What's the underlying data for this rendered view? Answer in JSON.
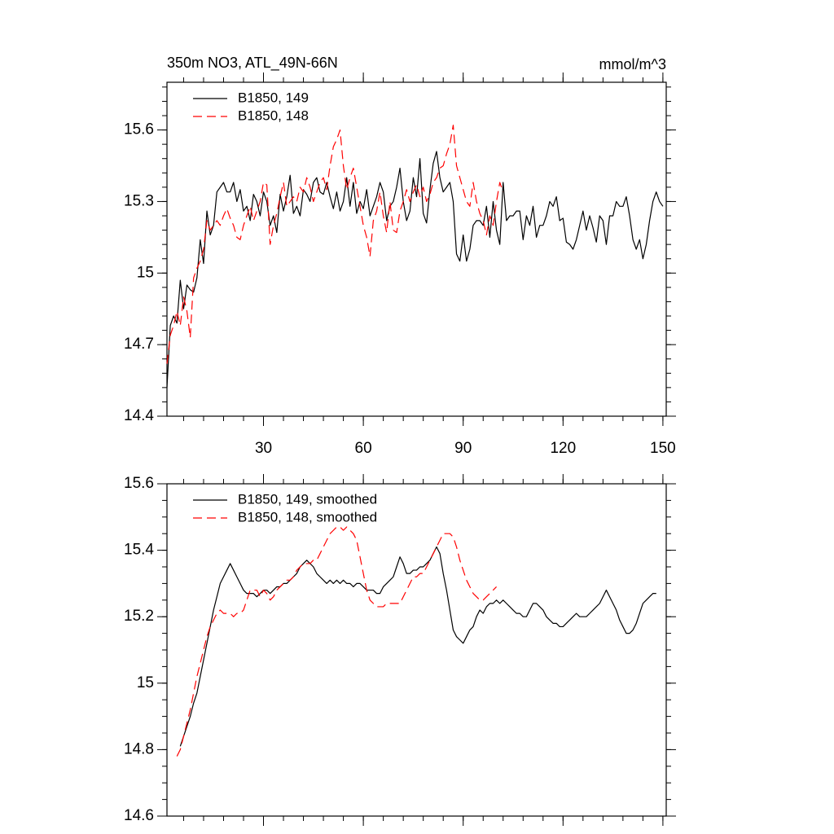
{
  "chart_data": [
    {
      "type": "line",
      "title": "350m NO3, ATL_49N-66N",
      "units": "mmol/m^3",
      "xlim": [
        1,
        151
      ],
      "xticks": [
        30,
        60,
        90,
        120,
        150
      ],
      "show_xtick_labels": true,
      "ylim": [
        14.4,
        15.8
      ],
      "yticks": [
        14.4,
        14.7,
        15.0,
        15.3,
        15.6
      ],
      "legend": "upper left",
      "x": [
        1,
        2,
        3,
        4,
        5,
        6,
        7,
        8,
        9,
        10,
        11,
        12,
        13,
        14,
        15,
        16,
        17,
        18,
        19,
        20,
        21,
        22,
        23,
        24,
        25,
        26,
        27,
        28,
        29,
        30,
        31,
        32,
        33,
        34,
        35,
        36,
        37,
        38,
        39,
        40,
        41,
        42,
        43,
        44,
        45,
        46,
        47,
        48,
        49,
        50,
        51,
        52,
        53,
        54,
        55,
        56,
        57,
        58,
        59,
        60,
        61,
        62,
        63,
        64,
        65,
        66,
        67,
        68,
        69,
        70,
        71,
        72,
        73,
        74,
        75,
        76,
        77,
        78,
        79,
        80,
        81,
        82,
        83,
        84,
        85,
        86,
        87,
        88,
        89,
        90,
        91,
        92,
        93,
        94,
        95,
        96,
        97,
        98,
        99,
        100,
        101,
        102,
        103,
        104,
        105,
        106,
        107,
        108,
        109,
        110,
        111,
        112,
        113,
        114,
        115,
        116,
        117,
        118,
        119,
        120,
        121,
        122,
        123,
        124,
        125,
        126,
        127,
        128,
        129,
        130,
        131,
        132,
        133,
        134,
        135,
        136,
        137,
        138,
        139,
        140,
        141,
        142,
        143,
        144,
        145,
        146,
        147,
        148,
        149,
        150
      ],
      "series": [
        {
          "name": "B1850, 149",
          "color": "#000000",
          "line_style": "solid",
          "values": [
            14.52,
            14.78,
            14.82,
            14.79,
            14.97,
            14.85,
            14.95,
            14.93,
            14.92,
            14.98,
            15.14,
            15.04,
            15.26,
            15.16,
            15.2,
            15.34,
            15.36,
            15.38,
            15.34,
            15.34,
            15.38,
            15.3,
            15.35,
            15.26,
            15.28,
            15.22,
            15.33,
            15.3,
            15.24,
            15.34,
            15.3,
            15.2,
            15.24,
            15.17,
            15.33,
            15.26,
            15.32,
            15.41,
            15.25,
            15.28,
            15.24,
            15.35,
            15.33,
            15.3,
            15.38,
            15.4,
            15.34,
            15.33,
            15.38,
            15.32,
            15.27,
            15.34,
            15.26,
            15.3,
            15.4,
            15.28,
            15.38,
            15.25,
            15.3,
            15.27,
            15.35,
            15.24,
            15.28,
            15.32,
            15.38,
            15.34,
            15.22,
            15.28,
            15.3,
            15.36,
            15.44,
            15.3,
            15.22,
            15.26,
            15.4,
            15.32,
            15.48,
            15.25,
            15.21,
            15.35,
            15.46,
            15.51,
            15.4,
            15.34,
            15.36,
            15.38,
            15.3,
            15.08,
            15.05,
            15.16,
            15.05,
            15.1,
            15.2,
            15.22,
            15.22,
            15.2,
            15.28,
            15.15,
            15.3,
            15.18,
            15.12,
            15.38,
            15.22,
            15.24,
            15.24,
            15.26,
            15.26,
            15.14,
            15.24,
            15.2,
            15.28,
            15.15,
            15.2,
            15.2,
            15.24,
            15.3,
            15.28,
            15.32,
            15.22,
            15.23,
            15.13,
            15.12,
            15.1,
            15.14,
            15.2,
            15.26,
            15.18,
            15.24,
            15.19,
            15.13,
            15.24,
            15.22,
            15.12,
            15.24,
            15.24,
            15.3,
            15.28,
            15.28,
            15.32,
            15.24,
            15.14,
            15.1,
            15.14,
            15.06,
            15.12,
            15.22,
            15.3,
            15.34,
            15.3,
            15.28
          ]
        },
        {
          "name": "B1850, 148",
          "color": "#ff0000",
          "line_style": "dashed",
          "values": [
            14.62,
            14.74,
            14.78,
            14.84,
            14.78,
            14.9,
            14.84,
            14.73,
            14.98,
            15.02,
            15.05,
            15.1,
            15.22,
            15.18,
            15.2,
            15.22,
            15.2,
            15.24,
            15.27,
            15.23,
            15.2,
            15.15,
            15.14,
            15.2,
            15.24,
            15.28,
            15.22,
            15.26,
            15.3,
            15.38,
            15.37,
            15.12,
            15.2,
            15.25,
            15.32,
            15.38,
            15.28,
            15.3,
            15.32,
            15.3,
            15.36,
            15.34,
            15.4,
            15.36,
            15.3,
            15.34,
            15.38,
            15.4,
            15.35,
            15.45,
            15.53,
            15.56,
            15.6,
            15.45,
            15.35,
            15.4,
            15.44,
            15.36,
            15.28,
            15.2,
            15.15,
            15.07,
            15.22,
            15.26,
            15.34,
            15.24,
            15.17,
            15.3,
            15.18,
            15.17,
            15.26,
            15.3,
            15.35,
            15.3,
            15.34,
            15.37,
            15.32,
            15.36,
            15.3,
            15.33,
            15.38,
            15.4,
            15.44,
            15.45,
            15.5,
            15.54,
            15.62,
            15.45,
            15.4,
            15.35,
            15.3,
            15.28,
            15.38,
            15.3,
            15.25,
            15.22,
            15.16,
            15.24,
            15.2,
            15.3,
            15.38,
            15.34,
            null,
            null,
            null,
            null,
            null,
            null,
            null,
            null,
            null,
            null,
            null,
            null,
            null,
            null,
            null,
            null,
            null,
            null,
            null,
            null,
            null,
            null,
            null,
            null,
            null,
            null,
            null,
            null,
            null,
            null,
            null,
            null,
            null,
            null,
            null,
            null,
            null,
            null,
            null,
            null,
            null,
            null,
            null,
            null,
            null,
            null,
            null,
            null
          ]
        }
      ]
    },
    {
      "type": "line",
      "xlim": [
        1,
        151
      ],
      "xticks": [
        30,
        60,
        90,
        120,
        150
      ],
      "show_xtick_labels": false,
      "ylim": [
        14.6,
        15.6
      ],
      "yticks": [
        14.6,
        14.8,
        15.0,
        15.2,
        15.4,
        15.6
      ],
      "legend": "upper left",
      "x": [
        1,
        2,
        3,
        4,
        5,
        6,
        7,
        8,
        9,
        10,
        11,
        12,
        13,
        14,
        15,
        16,
        17,
        18,
        19,
        20,
        21,
        22,
        23,
        24,
        25,
        26,
        27,
        28,
        29,
        30,
        31,
        32,
        33,
        34,
        35,
        36,
        37,
        38,
        39,
        40,
        41,
        42,
        43,
        44,
        45,
        46,
        47,
        48,
        49,
        50,
        51,
        52,
        53,
        54,
        55,
        56,
        57,
        58,
        59,
        60,
        61,
        62,
        63,
        64,
        65,
        66,
        67,
        68,
        69,
        70,
        71,
        72,
        73,
        74,
        75,
        76,
        77,
        78,
        79,
        80,
        81,
        82,
        83,
        84,
        85,
        86,
        87,
        88,
        89,
        90,
        91,
        92,
        93,
        94,
        95,
        96,
        97,
        98,
        99,
        100,
        101,
        102,
        103,
        104,
        105,
        106,
        107,
        108,
        109,
        110,
        111,
        112,
        113,
        114,
        115,
        116,
        117,
        118,
        119,
        120,
        121,
        122,
        123,
        124,
        125,
        126,
        127,
        128,
        129,
        130,
        131,
        132,
        133,
        134,
        135,
        136,
        137,
        138,
        139,
        140,
        141,
        142,
        143,
        144,
        145,
        146,
        147,
        148,
        149,
        150
      ],
      "series": [
        {
          "name": "B1850, 149, smoothed",
          "color": "#000000",
          "line_style": "solid",
          "values": [
            null,
            null,
            null,
            null,
            14.81,
            14.84,
            14.87,
            14.9,
            14.94,
            14.97,
            15.02,
            15.07,
            15.12,
            15.17,
            15.22,
            15.26,
            15.3,
            15.32,
            15.34,
            15.36,
            15.34,
            15.32,
            15.3,
            15.28,
            15.27,
            15.27,
            15.27,
            15.26,
            15.27,
            15.28,
            15.28,
            15.27,
            15.28,
            15.29,
            15.29,
            15.3,
            15.3,
            15.31,
            15.32,
            15.33,
            15.35,
            15.36,
            15.37,
            15.36,
            15.35,
            15.33,
            15.32,
            15.31,
            15.3,
            15.31,
            15.3,
            15.31,
            15.3,
            15.31,
            15.3,
            15.3,
            15.29,
            15.3,
            15.3,
            15.29,
            15.28,
            15.28,
            15.28,
            15.27,
            15.27,
            15.29,
            15.3,
            15.31,
            15.32,
            15.35,
            15.38,
            15.36,
            15.33,
            15.33,
            15.34,
            15.34,
            15.35,
            15.35,
            15.36,
            15.37,
            15.39,
            15.41,
            15.39,
            15.33,
            15.28,
            15.22,
            15.16,
            15.14,
            15.13,
            15.12,
            15.14,
            15.16,
            15.17,
            15.2,
            15.22,
            15.21,
            15.23,
            15.24,
            15.24,
            15.25,
            15.24,
            15.25,
            15.24,
            15.23,
            15.22,
            15.21,
            15.21,
            15.2,
            15.2,
            15.22,
            15.24,
            15.24,
            15.23,
            15.22,
            15.2,
            15.19,
            15.18,
            15.18,
            15.17,
            15.17,
            15.18,
            15.19,
            15.2,
            15.21,
            15.2,
            15.2,
            15.2,
            15.21,
            15.22,
            15.23,
            15.24,
            15.26,
            15.28,
            15.26,
            15.24,
            15.22,
            15.19,
            15.17,
            15.15,
            15.15,
            15.16,
            15.18,
            15.21,
            15.24,
            15.25,
            15.26,
            15.27,
            15.27,
            null,
            null
          ]
        },
        {
          "name": "B1850, 148, smoothed",
          "color": "#ff0000",
          "line_style": "dashed",
          "values": [
            null,
            null,
            null,
            14.78,
            14.8,
            14.84,
            14.88,
            14.92,
            14.97,
            15.02,
            15.06,
            15.1,
            15.14,
            15.17,
            15.19,
            15.21,
            15.22,
            15.21,
            15.21,
            15.21,
            15.2,
            15.21,
            15.21,
            15.22,
            15.25,
            15.28,
            15.28,
            15.28,
            15.26,
            15.28,
            15.27,
            15.25,
            15.26,
            15.28,
            15.29,
            15.3,
            15.31,
            15.31,
            15.32,
            15.34,
            15.35,
            15.36,
            15.36,
            15.36,
            15.37,
            15.37,
            15.39,
            15.41,
            15.43,
            15.45,
            15.46,
            15.47,
            15.47,
            15.46,
            15.47,
            15.46,
            15.45,
            15.43,
            15.38,
            15.33,
            15.28,
            15.25,
            15.24,
            15.23,
            15.23,
            15.23,
            15.24,
            15.24,
            15.24,
            15.24,
            15.24,
            15.26,
            15.28,
            15.3,
            15.32,
            15.32,
            15.33,
            15.33,
            15.35,
            15.37,
            15.39,
            15.41,
            15.43,
            15.45,
            15.45,
            15.45,
            15.44,
            15.41,
            15.37,
            15.34,
            15.31,
            15.29,
            15.27,
            15.26,
            15.25,
            15.25,
            15.26,
            15.27,
            15.28,
            15.29,
            null,
            null,
            null,
            null,
            null,
            null,
            null,
            null,
            null,
            null,
            null,
            null,
            null,
            null,
            null,
            null,
            null,
            null,
            null,
            null,
            null,
            null,
            null,
            null,
            null,
            null,
            null,
            null,
            null,
            null,
            null,
            null,
            null,
            null,
            null,
            null,
            null,
            null,
            null,
            null,
            null,
            null,
            null,
            null,
            null,
            null,
            null,
            null,
            null,
            null
          ]
        }
      ]
    }
  ]
}
